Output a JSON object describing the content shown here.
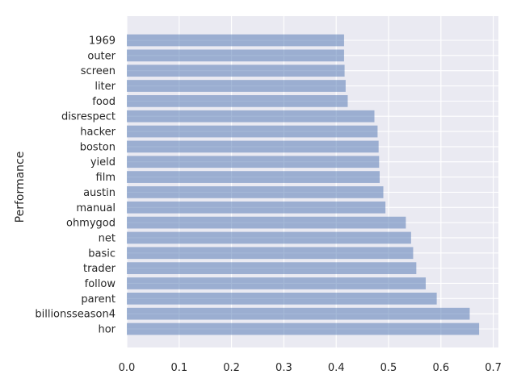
{
  "chart_data": {
    "type": "bar",
    "orientation": "horizontal",
    "title": "",
    "xlabel": "",
    "ylabel": "Performance",
    "xlim": [
      0,
      0.7
    ],
    "xticks": [
      "0.0",
      "0.1",
      "0.2",
      "0.3",
      "0.4",
      "0.5",
      "0.6",
      "0.7"
    ],
    "grid": true,
    "bar_color": "#4c72b0",
    "background_color": "#eaeaf2",
    "categories": [
      "1969",
      "outer",
      "screen",
      "liter",
      "food",
      "disrespect",
      "hacker",
      "boston",
      "yield",
      "film",
      "austin",
      "manual",
      "ohmygod",
      "net",
      "basic",
      "trader",
      "follow",
      "parent",
      "billionsseason4",
      "hor"
    ],
    "values": [
      0.415,
      0.415,
      0.416,
      0.418,
      0.422,
      0.473,
      0.479,
      0.481,
      0.482,
      0.483,
      0.49,
      0.494,
      0.533,
      0.543,
      0.547,
      0.553,
      0.571,
      0.592,
      0.655,
      0.673
    ]
  }
}
